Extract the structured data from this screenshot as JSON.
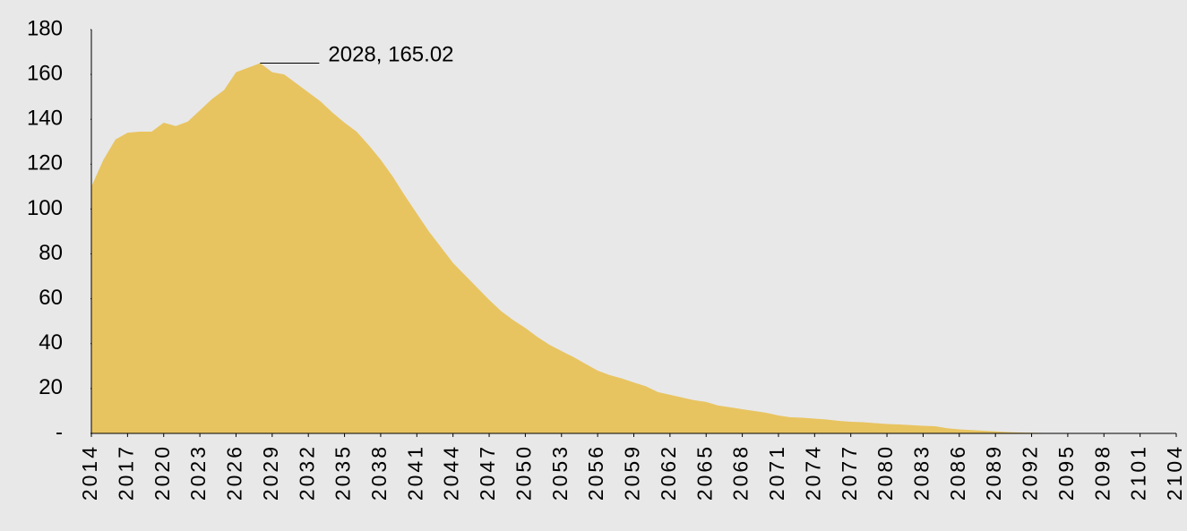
{
  "chart_data": {
    "type": "area",
    "color": "#e8c460",
    "x": [
      2014,
      2015,
      2016,
      2017,
      2018,
      2019,
      2020,
      2021,
      2022,
      2023,
      2024,
      2025,
      2026,
      2027,
      2028,
      2029,
      2030,
      2031,
      2032,
      2033,
      2034,
      2035,
      2036,
      2037,
      2038,
      2039,
      2040,
      2041,
      2042,
      2043,
      2044,
      2045,
      2046,
      2047,
      2048,
      2049,
      2050,
      2051,
      2052,
      2053,
      2054,
      2055,
      2056,
      2057,
      2058,
      2059,
      2060,
      2061,
      2062,
      2063,
      2064,
      2065,
      2066,
      2067,
      2068,
      2069,
      2070,
      2071,
      2072,
      2073,
      2074,
      2075,
      2076,
      2077,
      2078,
      2079,
      2080,
      2081,
      2082,
      2083,
      2084,
      2085,
      2086,
      2087,
      2088,
      2089,
      2090,
      2091,
      2092,
      2093,
      2094,
      2095,
      2096,
      2097,
      2098,
      2099,
      2100,
      2101,
      2102,
      2103,
      2104
    ],
    "values": [
      110,
      122,
      131,
      134,
      134.5,
      134.5,
      138.5,
      137,
      139,
      144,
      149,
      153,
      161,
      163,
      165.02,
      161,
      160,
      156,
      152,
      148,
      143,
      138.5,
      134.5,
      128.5,
      122,
      114.5,
      106,
      98,
      90,
      83,
      76,
      70.5,
      65,
      59.5,
      54.5,
      50.5,
      47,
      43,
      39.5,
      36.7,
      34,
      31,
      28,
      26,
      24.5,
      22.7,
      21,
      18.4,
      17.2,
      16,
      14.8,
      14,
      12.4,
      11.6,
      10.8,
      10,
      9.2,
      8,
      7.2,
      7,
      6.6,
      6.2,
      5.6,
      5.2,
      5,
      4.6,
      4.2,
      4,
      3.7,
      3.4,
      3.2,
      2.3,
      1.8,
      1.5,
      1.2,
      0.9,
      0.6,
      0.4,
      0.3,
      0.2,
      0.1,
      0.1,
      0.1,
      0,
      0,
      0,
      0,
      0,
      0,
      0,
      0
    ],
    "xlim": [
      2014,
      2104
    ],
    "xticks": [
      2014,
      2017,
      2020,
      2023,
      2026,
      2029,
      2032,
      2035,
      2038,
      2041,
      2044,
      2047,
      2050,
      2053,
      2056,
      2059,
      2062,
      2065,
      2068,
      2071,
      2074,
      2077,
      2080,
      2083,
      2086,
      2089,
      2092,
      2095,
      2098,
      2101,
      2104
    ],
    "ylim": [
      0,
      180
    ],
    "yticks": [
      {
        "value": 0,
        "label": "-"
      },
      20,
      40,
      60,
      80,
      100,
      120,
      140,
      160,
      180
    ],
    "annotation": {
      "text": "2028, 165.02",
      "x": 2028,
      "y": 165.02
    }
  }
}
